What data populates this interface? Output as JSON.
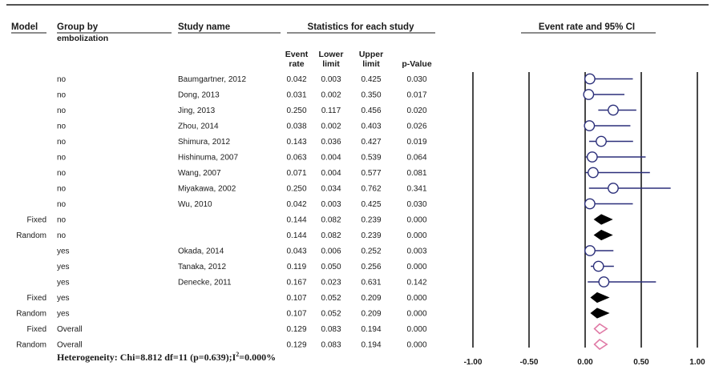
{
  "headers": {
    "model": "Model",
    "group": "Group by",
    "group2": "embolization",
    "study": "Study name",
    "stats": "Statistics for each study",
    "plot": "Event rate and 95% CI",
    "event1": "Event",
    "event2": "rate",
    "lower1": "Lower",
    "lower2": "limit",
    "upper1": "Upper",
    "upper2": "limit",
    "pvalue": "p-Value"
  },
  "heterogeneity": "Heterogeneity: Chi=8.812  df=11 (p=0.639);I",
  "heterogeneity_sup": "2",
  "heterogeneity_end": "=0.000%",
  "colors": {
    "study_marker": "#2b2f7a",
    "overall_marker": "#e07aa6",
    "pooled_marker": "#000000"
  },
  "chart_data": {
    "type": "forest",
    "xlim": [
      -1.0,
      1.0
    ],
    "x_ticks": [
      "-1.00",
      "-0.50",
      "0.00",
      "0.50",
      "1.00"
    ],
    "rows": [
      {
        "model": "",
        "group": "no",
        "study": "Baumgartner, 2012",
        "rate": "0.042",
        "lower": "0.003",
        "upper": "0.425",
        "p": "0.030",
        "kind": "study"
      },
      {
        "model": "",
        "group": "no",
        "study": "Dong, 2013",
        "rate": "0.031",
        "lower": "0.002",
        "upper": "0.350",
        "p": "0.017",
        "kind": "study"
      },
      {
        "model": "",
        "group": "no",
        "study": "Jing, 2013",
        "rate": "0.250",
        "lower": "0.117",
        "upper": "0.456",
        "p": "0.020",
        "kind": "study"
      },
      {
        "model": "",
        "group": "no",
        "study": "Zhou, 2014",
        "rate": "0.038",
        "lower": "0.002",
        "upper": "0.403",
        "p": "0.026",
        "kind": "study"
      },
      {
        "model": "",
        "group": "no",
        "study": "Shimura, 2012",
        "rate": "0.143",
        "lower": "0.036",
        "upper": "0.427",
        "p": "0.019",
        "kind": "study"
      },
      {
        "model": "",
        "group": "no",
        "study": "Hishinuma, 2007",
        "rate": "0.063",
        "lower": "0.004",
        "upper": "0.539",
        "p": "0.064",
        "kind": "study"
      },
      {
        "model": "",
        "group": "no",
        "study": "Wang, 2007",
        "rate": "0.071",
        "lower": "0.004",
        "upper": "0.577",
        "p": "0.081",
        "kind": "study"
      },
      {
        "model": "",
        "group": "no",
        "study": "Miyakawa, 2002",
        "rate": "0.250",
        "lower": "0.034",
        "upper": "0.762",
        "p": "0.341",
        "kind": "study"
      },
      {
        "model": "",
        "group": "no",
        "study": "Wu, 2010",
        "rate": "0.042",
        "lower": "0.003",
        "upper": "0.425",
        "p": "0.030",
        "kind": "study"
      },
      {
        "model": "Fixed",
        "group": "no",
        "study": "",
        "rate": "0.144",
        "lower": "0.082",
        "upper": "0.239",
        "p": "0.000",
        "kind": "pooled"
      },
      {
        "model": "Random",
        "group": "no",
        "study": "",
        "rate": "0.144",
        "lower": "0.082",
        "upper": "0.239",
        "p": "0.000",
        "kind": "pooled"
      },
      {
        "model": "",
        "group": "yes",
        "study": "Okada, 2014",
        "rate": "0.043",
        "lower": "0.006",
        "upper": "0.252",
        "p": "0.003",
        "kind": "study"
      },
      {
        "model": "",
        "group": "yes",
        "study": "Tanaka, 2012",
        "rate": "0.119",
        "lower": "0.050",
        "upper": "0.256",
        "p": "0.000",
        "kind": "study"
      },
      {
        "model": "",
        "group": "yes",
        "study": "Denecke, 2011",
        "rate": "0.167",
        "lower": "0.023",
        "upper": "0.631",
        "p": "0.142",
        "kind": "study"
      },
      {
        "model": "Fixed",
        "group": "yes",
        "study": "",
        "rate": "0.107",
        "lower": "0.052",
        "upper": "0.209",
        "p": "0.000",
        "kind": "pooled"
      },
      {
        "model": "Random",
        "group": "yes",
        "study": "",
        "rate": "0.107",
        "lower": "0.052",
        "upper": "0.209",
        "p": "0.000",
        "kind": "pooled"
      },
      {
        "model": "Fixed",
        "group": "Overall",
        "study": "",
        "rate": "0.129",
        "lower": "0.083",
        "upper": "0.194",
        "p": "0.000",
        "kind": "overall"
      },
      {
        "model": "Random",
        "group": "Overall",
        "study": "",
        "rate": "0.129",
        "lower": "0.083",
        "upper": "0.194",
        "p": "0.000",
        "kind": "overall"
      }
    ]
  }
}
